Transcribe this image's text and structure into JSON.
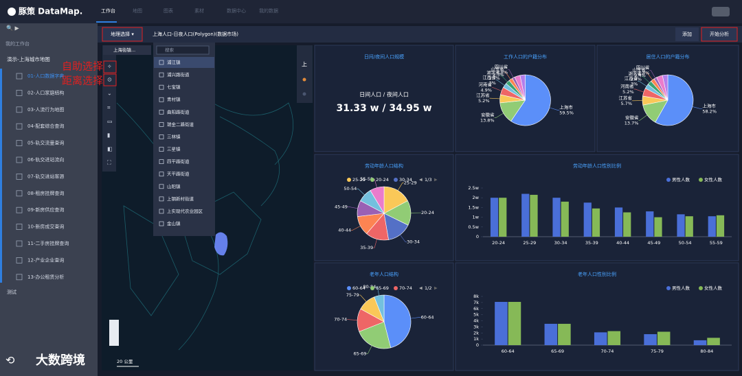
{
  "header": {
    "logo": "豚策 DataMap.",
    "nav": [
      "工作台",
      "地图",
      "图表",
      "素材",
      "数据中心",
      "我的数据"
    ]
  },
  "sidebar": {
    "section": "我的工作台",
    "project": "演示-上海城市地图",
    "items": [
      "01-人口数据字典",
      "02-人口家庭结构",
      "03-人流行为地图",
      "04-配套综合查询",
      "05-轨交流量查询",
      "06-轨交进站流向",
      "07-轨交进站客源",
      "08-租房挂牌查询",
      "09-新房供应查询",
      "10-新房成交查询",
      "11-二手房挂牌查询",
      "12-产业企业查询",
      "13-办公租赁分析"
    ],
    "footer": "测试"
  },
  "toolbar": {
    "geo_select": "地理选择 ▾",
    "layer": "上海人口-日夜人口(Polygon)(数据市场)",
    "add": "添加",
    "analyze": "开始分析"
  },
  "map": {
    "district_select": "上海街镇...",
    "search_placeholder": "搜索",
    "districts": [
      "浦江镇",
      "浦兴路街道",
      "七宝镇",
      "青村镇",
      "曲阳路街道",
      "瑞金二路街道",
      "三林镇",
      "三星镇",
      "四平路街道",
      "天平路街道",
      "山阳镇",
      "上钢新村街道",
      "上实现代农业园区",
      "金山镇"
    ],
    "annotations": [
      "自助选择",
      "距离选择"
    ],
    "compass": "上",
    "scale": "20 公里"
  },
  "watermark": "大数跨境",
  "chart_data": [
    {
      "type": "kpi",
      "title": "日间/夜间人口规模",
      "label": "日间人口 / 夜间人口",
      "value_text": "31.33 w / 34.95 w"
    },
    {
      "type": "pie",
      "title": "工作人口的户籍分布",
      "categories": [
        "上海市",
        "安徽省",
        "江苏省",
        "河南省",
        "江西省",
        "湖北省",
        "山东省",
        "四川省",
        null,
        null
      ],
      "values": [
        59.5,
        13.8,
        5.2,
        4.9,
        3,
        2.7,
        2.3,
        1.8,
        3.5,
        3.3
      ],
      "value_labels": [
        "59.5%",
        "13.8%",
        "5.2%",
        "4.9%",
        "3%",
        "2.7%",
        "2.3%",
        "1.8%",
        null,
        null
      ],
      "colors": [
        "#5b8ff9",
        "#91cc75",
        "#fac858",
        "#ee6666",
        "#73c0de",
        "#3ba272",
        "#fc8452",
        "#9a60b4",
        "#ea7ccc",
        "#b37feb"
      ]
    },
    {
      "type": "pie",
      "title": "居住人口的户籍分布",
      "categories": [
        "上海市",
        "安徽省",
        "江苏省",
        "河南省",
        "江西省",
        "湖北省",
        "山东省",
        "四川省",
        null,
        null
      ],
      "values": [
        58.2,
        13.7,
        5.7,
        5.2,
        3,
        2.7,
        2.4,
        1.8,
        3.9,
        3.4
      ],
      "value_labels": [
        "58.2%",
        "13.7%",
        "5.7%",
        "5.2%",
        "3%",
        "2.7%",
        "2.4%",
        "1.8%",
        null,
        null
      ],
      "colors": [
        "#5b8ff9",
        "#91cc75",
        "#fac858",
        "#ee6666",
        "#73c0de",
        "#3ba272",
        "#fc8452",
        "#9a60b4",
        "#ea7ccc",
        "#b37feb"
      ]
    },
    {
      "type": "pie",
      "title": "劳动年龄人口结构",
      "legend_page": "1/3",
      "categories": [
        "25-29",
        "20-24",
        "30-34",
        "35-39",
        "40-44",
        "45-49",
        "50-54",
        "55-59"
      ],
      "values": [
        16,
        14,
        14,
        13,
        11,
        9,
        8,
        8
      ],
      "colors": [
        "#fac858",
        "#91cc75",
        "#5470c6",
        "#ee6666",
        "#fc8452",
        "#9a60b4",
        "#73c0de",
        "#ea7ccc"
      ]
    },
    {
      "type": "bar",
      "title": "劳动年龄人口性别比例",
      "legend": "top-right",
      "grid": false,
      "categories": [
        "20-24",
        "25-29",
        "30-34",
        "35-39",
        "40-44",
        "45-49",
        "50-54",
        "55-59"
      ],
      "series": [
        {
          "name": "男性人数",
          "color": "#4a6fd8",
          "values": [
            2.0,
            2.2,
            2.0,
            1.75,
            1.5,
            1.3,
            1.15,
            1.05
          ]
        },
        {
          "name": "女性人数",
          "color": "#86b957",
          "values": [
            2.0,
            2.15,
            1.8,
            1.45,
            1.25,
            1.0,
            1.05,
            1.1
          ]
        }
      ],
      "ylim": [
        0,
        2.5
      ],
      "yticks": [
        0,
        {
          "value": 0.5,
          "label": "0.5w"
        },
        {
          "value": 1,
          "label": "1w"
        },
        {
          "value": 1.5,
          "label": "1.5w"
        },
        {
          "value": 2,
          "label": "2w"
        },
        {
          "value": 2.5,
          "label": "2.5w"
        }
      ]
    },
    {
      "type": "pie",
      "title": "老年人口结构",
      "legend_page": "1/2",
      "categories": [
        "60-64",
        "65-69",
        "70-74",
        "75-79",
        "80-84"
      ],
      "values": [
        46,
        23,
        14,
        11,
        6
      ],
      "colors": [
        "#5b8ff9",
        "#91cc75",
        "#ee6666",
        "#fac858",
        "#73c0de"
      ]
    },
    {
      "type": "bar",
      "title": "老年人口性别比例",
      "legend": "top-right",
      "grid": false,
      "categories": [
        "60-64",
        "65-69",
        "70-74",
        "75-79",
        "80-84"
      ],
      "series": [
        {
          "name": "男性人数",
          "color": "#4a6fd8",
          "values": [
            7.1,
            3.5,
            2.1,
            1.8,
            0.8
          ]
        },
        {
          "name": "女性人数",
          "color": "#86b957",
          "values": [
            7.1,
            3.5,
            2.3,
            2.2,
            1.2
          ]
        }
      ],
      "ylim": [
        0,
        8
      ],
      "yticks": [
        0,
        {
          "value": 1,
          "label": "1k"
        },
        {
          "value": 2,
          "label": "2k"
        },
        {
          "value": 3,
          "label": "3k"
        },
        {
          "value": 4,
          "label": "4k"
        },
        {
          "value": 5,
          "label": "5k"
        },
        {
          "value": 6,
          "label": "6k"
        },
        {
          "value": 7,
          "label": "7k"
        },
        {
          "value": 8,
          "label": "8k"
        }
      ]
    }
  ]
}
